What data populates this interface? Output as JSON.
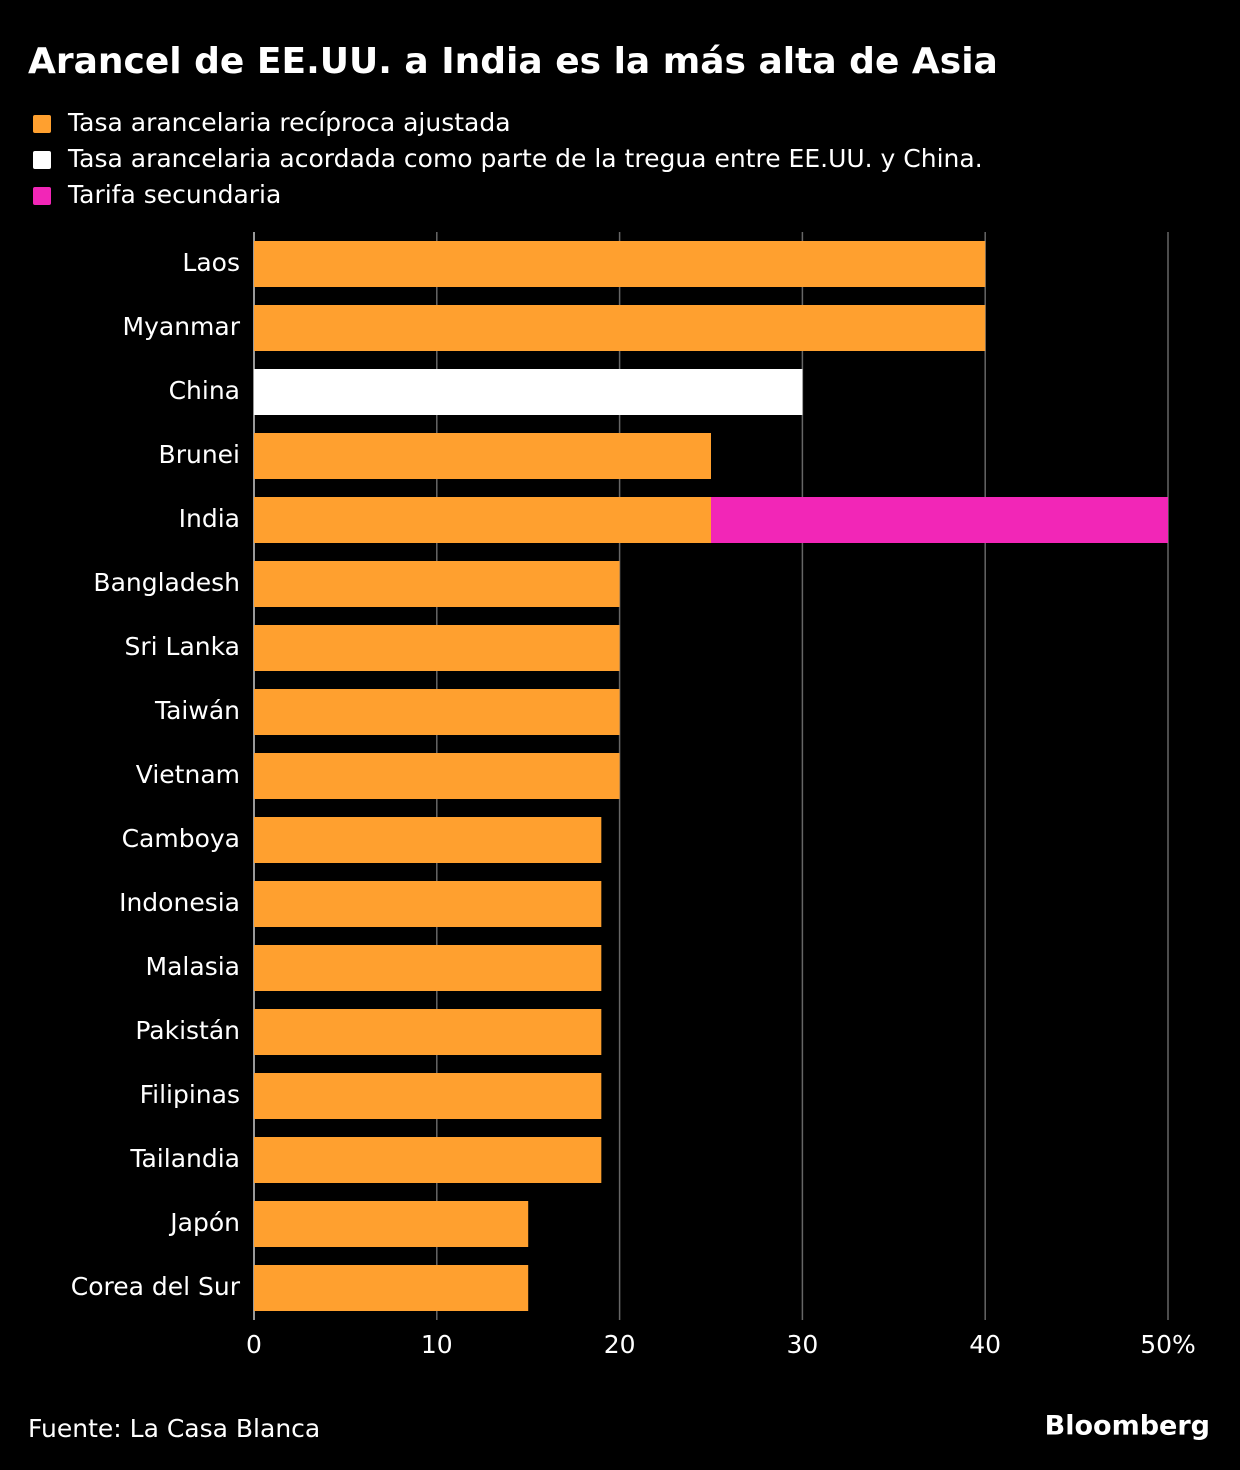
{
  "chart_data": {
    "type": "stacked-barh",
    "title": "Arancel de EE.UU. a India es la más alta de Asia",
    "categories": [
      "Laos",
      "Myanmar",
      "China",
      "Brunei",
      "India",
      "Bangladesh",
      "Sri Lanka",
      "Taiwán",
      "Vietnam",
      "Camboya",
      "Indonesia",
      "Malasia",
      "Pakistán",
      "Filipinas",
      "Tailandia",
      "Japón",
      "Corea del Sur"
    ],
    "series": [
      {
        "name": "Tasa arancelaria recíproca ajustada",
        "color": "#ffa02f",
        "values": [
          40,
          40,
          null,
          25,
          25,
          20,
          20,
          20,
          20,
          19,
          19,
          19,
          19,
          19,
          19,
          15,
          15
        ]
      },
      {
        "name": "Tasa arancelaria acordada como parte de la tregua entre EE.UU. y China.",
        "color": "#ffffff",
        "values": [
          null,
          null,
          30,
          null,
          null,
          null,
          null,
          null,
          null,
          null,
          null,
          null,
          null,
          null,
          null,
          null,
          null
        ]
      },
      {
        "name": "Tarifa secundaria",
        "color": "#f226b7",
        "values": [
          null,
          null,
          null,
          null,
          25,
          null,
          null,
          null,
          null,
          null,
          null,
          null,
          null,
          null,
          null,
          null,
          null
        ]
      }
    ],
    "xlim": [
      0,
      50
    ],
    "xticks": [
      0,
      10,
      20,
      30,
      40,
      {
        "value": 50,
        "label": "50%"
      }
    ],
    "grid": true,
    "source": "Fuente: La Casa Blanca",
    "credit": "Bloomberg"
  }
}
